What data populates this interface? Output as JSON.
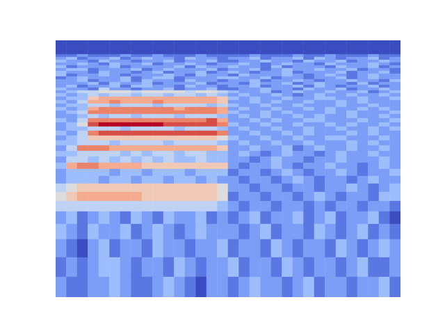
{
  "chart_data": {
    "type": "heatmap",
    "xlim": [
      0,
      32
    ],
    "ylim": [
      0,
      369
    ],
    "vlim": [
      0,
      10
    ],
    "grid": false,
    "tick_labels": false,
    "x_edges": [
      0,
      1,
      2,
      3,
      4,
      5,
      6,
      7,
      8,
      9,
      10,
      11,
      12,
      13,
      14,
      15,
      16,
      17,
      18,
      19,
      20,
      21,
      22,
      23,
      24,
      25,
      26,
      27,
      28,
      29,
      30,
      31,
      32
    ],
    "y_edges": [
      369,
      365,
      361,
      357,
      353,
      349,
      345,
      341,
      337,
      333,
      329,
      325,
      321,
      317,
      313,
      309,
      305,
      301,
      297,
      293,
      288,
      283,
      278,
      273,
      268,
      263,
      257,
      251,
      245,
      239,
      232,
      225,
      218,
      210,
      202,
      193,
      184,
      174,
      163,
      151,
      138,
      123,
      105,
      83,
      57,
      29,
      0
    ],
    "cells": [
      [
        0,
        0,
        0,
        0,
        0,
        0,
        0,
        0,
        0,
        0,
        0,
        0,
        0,
        0,
        0,
        0,
        0,
        0,
        0,
        0,
        0,
        0,
        0,
        0,
        0,
        0,
        0,
        0,
        0,
        0,
        0,
        0
      ],
      [
        0,
        0,
        0,
        0,
        0,
        0,
        0,
        0,
        0,
        0,
        0,
        0,
        0,
        0,
        0,
        0,
        0,
        0,
        0,
        0,
        0,
        0,
        0,
        0,
        0,
        0,
        0,
        0,
        0,
        0,
        0,
        0
      ],
      [
        0,
        0,
        0,
        0,
        0,
        0,
        0,
        0,
        0,
        0,
        0,
        0,
        0,
        0,
        0,
        0,
        0,
        0,
        0,
        0,
        0,
        0,
        0,
        0,
        0,
        0,
        0,
        0,
        0,
        0,
        0,
        0
      ],
      [
        0,
        0,
        0,
        0,
        0,
        0,
        0,
        0,
        0,
        0,
        0,
        0,
        0,
        0,
        0,
        0,
        0,
        0,
        0,
        0,
        0,
        0,
        0,
        0,
        0,
        0,
        0,
        0,
        0,
        0,
        0,
        0
      ],
      [
        0,
        0,
        0,
        0,
        0,
        0,
        0,
        0,
        0,
        0,
        0,
        0,
        0,
        0,
        0,
        0,
        0,
        0,
        0,
        0,
        0,
        0,
        0,
        0,
        0,
        0,
        0,
        0,
        0,
        0,
        0,
        0
      ],
      [
        1,
        1,
        2,
        1,
        1,
        1,
        2,
        1,
        1,
        2,
        1,
        1,
        1,
        2,
        1,
        1,
        1,
        1,
        2,
        1,
        1,
        1,
        2,
        1,
        1,
        2,
        1,
        1,
        1,
        2,
        1,
        1
      ],
      [
        2,
        3,
        1,
        2,
        2,
        3,
        1,
        2,
        3,
        2,
        2,
        1,
        3,
        2,
        2,
        1,
        2,
        2,
        3,
        1,
        2,
        2,
        3,
        1,
        3,
        2,
        1,
        2,
        2,
        3,
        1,
        2
      ],
      [
        3,
        2,
        2,
        1,
        3,
        2,
        2,
        1,
        2,
        2,
        3,
        1,
        2,
        2,
        3,
        1,
        1,
        2,
        2,
        3,
        2,
        2,
        1,
        3,
        2,
        2,
        3,
        1,
        2,
        2,
        3,
        2
      ],
      [
        2,
        2,
        3,
        2,
        1,
        3,
        2,
        2,
        3,
        1,
        2,
        2,
        3,
        2,
        1,
        2,
        2,
        3,
        2,
        1,
        2,
        3,
        2,
        2,
        1,
        3,
        2,
        2,
        2,
        3,
        2,
        1
      ],
      [
        3,
        1,
        2,
        2,
        2,
        3,
        1,
        2,
        2,
        2,
        2,
        3,
        1,
        3,
        2,
        2,
        3,
        2,
        2,
        1,
        3,
        1,
        2,
        2,
        2,
        1,
        3,
        2,
        2,
        3,
        1,
        2
      ],
      [
        2,
        3,
        3,
        1,
        2,
        2,
        2,
        3,
        1,
        2,
        3,
        2,
        2,
        2,
        3,
        1,
        2,
        2,
        3,
        1,
        2,
        3,
        2,
        2,
        3,
        2,
        2,
        3,
        1,
        2,
        2,
        1
      ],
      [
        3,
        2,
        2,
        1,
        3,
        2,
        2,
        1,
        2,
        3,
        1,
        2,
        2,
        3,
        1,
        2,
        3,
        2,
        1,
        2,
        2,
        3,
        1,
        2,
        2,
        2,
        3,
        1,
        2,
        2,
        3,
        1
      ],
      [
        3,
        1,
        2,
        2,
        3,
        2,
        1,
        2,
        2,
        2,
        3,
        2,
        1,
        3,
        2,
        2,
        1,
        3,
        2,
        2,
        2,
        3,
        2,
        1,
        2,
        3,
        2,
        1,
        2,
        3,
        2,
        2
      ],
      [
        1,
        2,
        3,
        2,
        2,
        2,
        3,
        1,
        2,
        3,
        3,
        1,
        2,
        2,
        2,
        3,
        3,
        2,
        2,
        3,
        1,
        2,
        2,
        1,
        2,
        2,
        3,
        1,
        2,
        3,
        2,
        2
      ],
      [
        2,
        2,
        3,
        1,
        2,
        2,
        3,
        1,
        3,
        2,
        2,
        1,
        3,
        2,
        2,
        1,
        2,
        2,
        3,
        1,
        2,
        2,
        3,
        2,
        1,
        2,
        2,
        3,
        2,
        2,
        1,
        3
      ],
      [
        2,
        2,
        2,
        3,
        1,
        3,
        2,
        2,
        3,
        1,
        2,
        2,
        2,
        3,
        1,
        2,
        2,
        1,
        3,
        2,
        2,
        3,
        1,
        2,
        3,
        2,
        2,
        1,
        3,
        1,
        2,
        2
      ],
      [
        2,
        3,
        1,
        2,
        2,
        3,
        1,
        3,
        3,
        2,
        2,
        1,
        3,
        2,
        2,
        1,
        2,
        2,
        3,
        1,
        2,
        2,
        3,
        1,
        3,
        2,
        1,
        2,
        2,
        3,
        1,
        2
      ],
      [
        3,
        2,
        2,
        1,
        4,
        2,
        2,
        1,
        2,
        2,
        3,
        1,
        2,
        2,
        3,
        1,
        1,
        2,
        2,
        3,
        2,
        2,
        1,
        3,
        2,
        2,
        3,
        1,
        2,
        2,
        3,
        2
      ],
      [
        2,
        3,
        4,
        4,
        5,
        5,
        5,
        4,
        5,
        5,
        5,
        5,
        4,
        5,
        5,
        4,
        3,
        2,
        2,
        3,
        1,
        2,
        3,
        2,
        2,
        3,
        2,
        2,
        3,
        1,
        2,
        3
      ],
      [
        3,
        2,
        3,
        4,
        3,
        4,
        4,
        3,
        4,
        4,
        3,
        4,
        4,
        3,
        4,
        3,
        2,
        3,
        2,
        2,
        3,
        2,
        1,
        2,
        3,
        2,
        2,
        3,
        2,
        2,
        3,
        2
      ],
      [
        2,
        3,
        3,
        6,
        7,
        7,
        7,
        7,
        7,
        7,
        7,
        7,
        7,
        7,
        7,
        6,
        3,
        2,
        3,
        2,
        2,
        3,
        2,
        2,
        3,
        3,
        2,
        2,
        3,
        2,
        2,
        3
      ],
      [
        3,
        2,
        4,
        7,
        7,
        8,
        7,
        7,
        7,
        8,
        7,
        7,
        7,
        7,
        7,
        6,
        2,
        2,
        3,
        2,
        3,
        2,
        2,
        3,
        2,
        2,
        3,
        2,
        3,
        2,
        2,
        2
      ],
      [
        2,
        3,
        3,
        4,
        4,
        3,
        4,
        4,
        4,
        3,
        4,
        4,
        4,
        4,
        3,
        4,
        3,
        2,
        2,
        3,
        2,
        2,
        3,
        2,
        2,
        2,
        3,
        2,
        2,
        3,
        2,
        2
      ],
      [
        3,
        2,
        3,
        7,
        8,
        8,
        8,
        8,
        8,
        8,
        8,
        7,
        8,
        8,
        8,
        7,
        2,
        3,
        2,
        2,
        3,
        2,
        2,
        3,
        2,
        3,
        2,
        2,
        3,
        2,
        3,
        2
      ],
      [
        2,
        3,
        4,
        8,
        8,
        8,
        8,
        8,
        8,
        8,
        8,
        8,
        8,
        8,
        8,
        7,
        3,
        2,
        2,
        3,
        2,
        3,
        2,
        2,
        2,
        3,
        2,
        3,
        2,
        2,
        2,
        3
      ],
      [
        2,
        2,
        3,
        4,
        3,
        4,
        4,
        3,
        4,
        4,
        4,
        3,
        4,
        4,
        4,
        3,
        2,
        3,
        2,
        3,
        2,
        2,
        3,
        2,
        3,
        2,
        2,
        3,
        2,
        2,
        3,
        2
      ],
      [
        3,
        2,
        4,
        8,
        8,
        8,
        8,
        8,
        8,
        8,
        8,
        8,
        8,
        8,
        9,
        7,
        2,
        2,
        3,
        2,
        3,
        2,
        2,
        3,
        3,
        2,
        2,
        2,
        3,
        2,
        2,
        3
      ],
      [
        2,
        3,
        5,
        9,
        10,
        10,
        10,
        10,
        10,
        10,
        9,
        9,
        9,
        9,
        9,
        8,
        3,
        2,
        2,
        3,
        2,
        2,
        3,
        2,
        2,
        3,
        2,
        3,
        2,
        2,
        3,
        2
      ],
      [
        2,
        3,
        3,
        4,
        4,
        4,
        3,
        4,
        4,
        4,
        4,
        3,
        4,
        4,
        4,
        3,
        2,
        3,
        2,
        2,
        3,
        2,
        2,
        3,
        2,
        2,
        3,
        2,
        2,
        3,
        2,
        3
      ],
      [
        3,
        2,
        4,
        8,
        9,
        9,
        9,
        9,
        9,
        9,
        9,
        9,
        9,
        9,
        9,
        8,
        2,
        2,
        3,
        2,
        2,
        3,
        2,
        3,
        2,
        2,
        2,
        3,
        2,
        3,
        2,
        2
      ],
      [
        2,
        3,
        4,
        6,
        6,
        6,
        6,
        6,
        6,
        6,
        6,
        6,
        6,
        6,
        6,
        5,
        3,
        2,
        2,
        3,
        2,
        2,
        3,
        2,
        2,
        3,
        3,
        2,
        2,
        2,
        3,
        2
      ],
      [
        3,
        3,
        4,
        4,
        4,
        3,
        4,
        4,
        4,
        4,
        3,
        4,
        4,
        4,
        4,
        3,
        2,
        3,
        2,
        2,
        3,
        2,
        2,
        3,
        2,
        2,
        2,
        3,
        2,
        3,
        2,
        2
      ],
      [
        2,
        4,
        8,
        8,
        8,
        7,
        7,
        7,
        7,
        7,
        7,
        7,
        7,
        7,
        7,
        6,
        2,
        2,
        3,
        2,
        2,
        3,
        1,
        2,
        3,
        2,
        2,
        3,
        2,
        2,
        3,
        2
      ],
      [
        3,
        3,
        4,
        4,
        4,
        4,
        3,
        4,
        3,
        4,
        4,
        3,
        4,
        4,
        3,
        3,
        2,
        3,
        2,
        1,
        2,
        3,
        2,
        2,
        1,
        2,
        3,
        2,
        2,
        3,
        2,
        2
      ],
      [
        2,
        4,
        4,
        3,
        4,
        3,
        4,
        3,
        4,
        3,
        4,
        3,
        3,
        4,
        3,
        3,
        2,
        2,
        1,
        2,
        3,
        2,
        2,
        1,
        2,
        2,
        3,
        2,
        2,
        2,
        3,
        2
      ],
      [
        3,
        7,
        8,
        8,
        7,
        7,
        7,
        7,
        6,
        6,
        6,
        6,
        6,
        6,
        6,
        6,
        2,
        1,
        2,
        2,
        3,
        2,
        1,
        2,
        2,
        3,
        2,
        2,
        1,
        2,
        3,
        2
      ],
      [
        2,
        3,
        3,
        3,
        3,
        2,
        3,
        3,
        2,
        3,
        3,
        3,
        2,
        3,
        3,
        3,
        1,
        2,
        2,
        1,
        2,
        3,
        2,
        1,
        2,
        2,
        3,
        2,
        1,
        2,
        2,
        3
      ],
      [
        2,
        3,
        3,
        3,
        2,
        3,
        3,
        2,
        3,
        3,
        2,
        3,
        3,
        2,
        3,
        2,
        2,
        1,
        2,
        2,
        1,
        2,
        3,
        2,
        1,
        2,
        2,
        1,
        2,
        3,
        2,
        2
      ],
      [
        4,
        5,
        6,
        6,
        6,
        6,
        6,
        6,
        6,
        6,
        6,
        6,
        6,
        6,
        6,
        5,
        2,
        2,
        1,
        2,
        2,
        1,
        2,
        2,
        1,
        2,
        2,
        3,
        2,
        1,
        2,
        3
      ],
      [
        5,
        6,
        7,
        7,
        7,
        7,
        7,
        7,
        6,
        6,
        6,
        6,
        6,
        6,
        6,
        5,
        1,
        2,
        2,
        1,
        2,
        2,
        1,
        2,
        3,
        2,
        1,
        2,
        2,
        1,
        3,
        3
      ],
      [
        4,
        4,
        4,
        4,
        4,
        4,
        4,
        4,
        4,
        4,
        4,
        4,
        4,
        4,
        4,
        3,
        2,
        1,
        2,
        2,
        1,
        2,
        2,
        1,
        2,
        1,
        2,
        2,
        1,
        2,
        2,
        1
      ],
      [
        2,
        3,
        1,
        2,
        3,
        2,
        1,
        3,
        2,
        1,
        3,
        2,
        2,
        3,
        1,
        2,
        1,
        2,
        3,
        1,
        2,
        2,
        3,
        1,
        2,
        3,
        1,
        2,
        2,
        3,
        1,
        0
      ],
      [
        3,
        2,
        1,
        3,
        2,
        2,
        3,
        1,
        2,
        3,
        2,
        1,
        2,
        3,
        2,
        2,
        2,
        1,
        2,
        3,
        1,
        2,
        2,
        1,
        3,
        2,
        1,
        2,
        3,
        1,
        2,
        1
      ],
      [
        2,
        1,
        0,
        2,
        3,
        1,
        2,
        2,
        1,
        3,
        2,
        2,
        1,
        2,
        2,
        3,
        1,
        2,
        2,
        1,
        3,
        2,
        1,
        2,
        2,
        1,
        3,
        2,
        1,
        2,
        3,
        2
      ],
      [
        1,
        2,
        1,
        2,
        3,
        3,
        2,
        1,
        2,
        2,
        1,
        3,
        2,
        1,
        2,
        2,
        3,
        1,
        2,
        2,
        1,
        3,
        2,
        1,
        2,
        2,
        1,
        2,
        3,
        1,
        1,
        2
      ],
      [
        2,
        1,
        1,
        2,
        2,
        3,
        2,
        1,
        1,
        2,
        3,
        2,
        1,
        0,
        2,
        2,
        1,
        2,
        3,
        2,
        2,
        1,
        2,
        3,
        1,
        2,
        2,
        1,
        2,
        2,
        3,
        1
      ]
    ]
  }
}
